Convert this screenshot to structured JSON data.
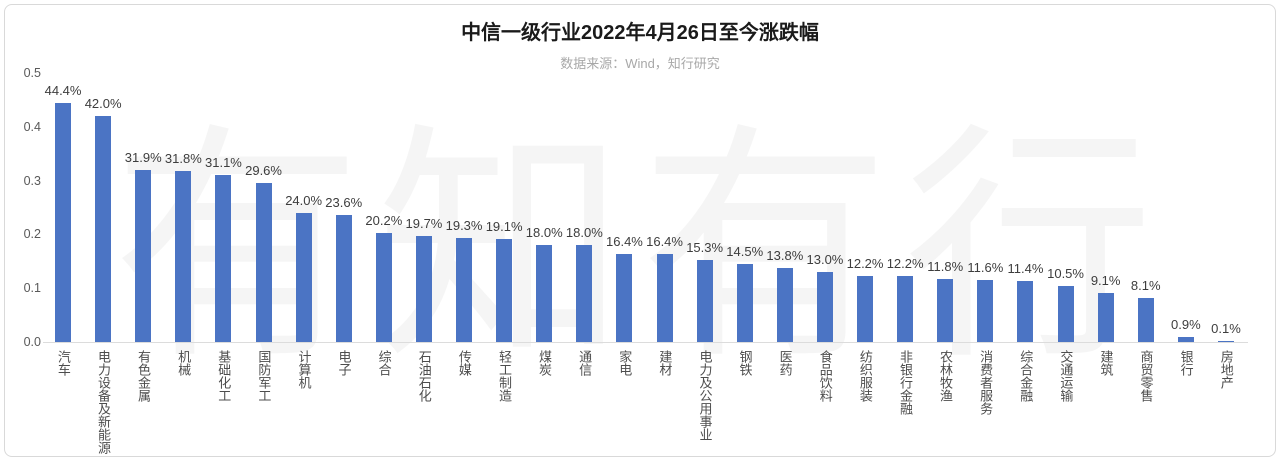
{
  "chart": {
    "title": "中信一级行业2022年4月26日至今涨跌幅",
    "subtitle": "数据来源：Wind，知行研究",
    "watermark": "有知有行"
  },
  "chart_data": {
    "type": "bar",
    "title": "中信一级行业2022年4月26日至今涨跌幅",
    "source_note": "数据来源：Wind，知行研究",
    "orientation": "vertical",
    "categories": [
      "汽车",
      "电力设备及新能源",
      "有色金属",
      "机械",
      "基础化工",
      "国防军工",
      "计算机",
      "电子",
      "综合",
      "石油石化",
      "传媒",
      "轻工制造",
      "煤炭",
      "通信",
      "家电",
      "建材",
      "电力及公用事业",
      "钢铁",
      "医药",
      "食品饮料",
      "纺织服装",
      "非银行金融",
      "农林牧渔",
      "消费者服务",
      "综合金融",
      "交通运输",
      "建筑",
      "商贸零售",
      "银行",
      "房地产"
    ],
    "values": [
      44.4,
      42.0,
      31.9,
      31.8,
      31.1,
      29.6,
      24.0,
      23.6,
      20.2,
      19.7,
      19.3,
      19.1,
      18.0,
      18.0,
      16.4,
      16.4,
      15.3,
      14.5,
      13.8,
      13.0,
      12.2,
      12.2,
      11.8,
      11.6,
      11.4,
      10.5,
      9.1,
      8.1,
      0.9,
      0.1
    ],
    "value_labels": [
      "44.4%",
      "42.0%",
      "31.9%",
      "31.8%",
      "31.1%",
      "29.6%",
      "24.0%",
      "23.6%",
      "20.2%",
      "19.7%",
      "19.3%",
      "19.1%",
      "18.0%",
      "18.0%",
      "16.4%",
      "16.4%",
      "15.3%",
      "14.5%",
      "13.8%",
      "13.0%",
      "12.2%",
      "12.2%",
      "11.8%",
      "11.6%",
      "11.4%",
      "10.5%",
      "9.1%",
      "8.1%",
      "0.9%",
      "0.1%"
    ],
    "xlabel": "",
    "ylabel": "",
    "ylim": [
      0,
      0.5
    ],
    "yticks": [
      0.0,
      0.1,
      0.2,
      0.3,
      0.4,
      0.5
    ],
    "ytick_labels": [
      "0.0",
      "0.1",
      "0.2",
      "0.3",
      "0.4",
      "0.5"
    ],
    "grid": false,
    "legend": null,
    "bar_color": "#4B74C4"
  },
  "colors": {
    "bar": "#4B74C4",
    "title_text": "#1a1a1a",
    "subtitle_text": "#a8a8a8",
    "value_label_text": "#3d3d3d",
    "category_label_text": "#4d4d4d",
    "tick_label_text": "#595959",
    "axis_line": "#dcdcdc",
    "card_border": "#d9d9d9",
    "background": "#ffffff"
  }
}
